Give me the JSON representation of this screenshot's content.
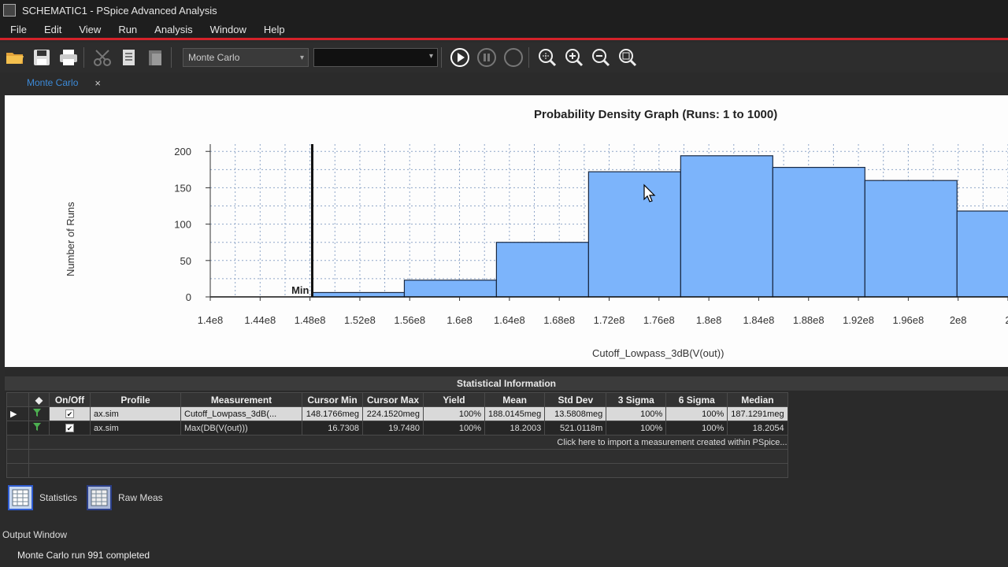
{
  "window": {
    "title": "SCHEMATIC1 - PSpice Advanced Analysis"
  },
  "menu": [
    "File",
    "Edit",
    "View",
    "Run",
    "Analysis",
    "Window",
    "Help"
  ],
  "toolbar": {
    "profile_value": "Monte Carlo",
    "icons": [
      "open-folder-icon",
      "save-icon",
      "print-icon",
      "cut-icon",
      "copy-icon",
      "paste-icon",
      "run-icon",
      "pause-icon",
      "stop-icon",
      "zoom-fit-icon",
      "zoom-in-icon",
      "zoom-out-icon",
      "zoom-area-icon"
    ]
  },
  "tab": {
    "label": "Monte Carlo",
    "close": "×"
  },
  "graph": {
    "title": "Probability Density Graph (Runs: 1 to 1000)",
    "ylabel": "Number of Runs",
    "xlabel": "Cutoff_Lowpass_3dB(V(out))",
    "min_marker": "Min"
  },
  "chart_data": {
    "type": "bar",
    "title": "Probability Density Graph (Runs: 1 to 1000)",
    "xlabel": "Cutoff_Lowpass_3dB(V(out))",
    "ylabel": "Number of Runs",
    "x_ticks": [
      "1.4e8",
      "1.44e8",
      "1.48e8",
      "1.52e8",
      "1.56e8",
      "1.6e8",
      "1.64e8",
      "1.68e8",
      "1.72e8",
      "1.76e8",
      "1.8e8",
      "1.84e8",
      "1.88e8",
      "1.92e8",
      "1.96e8",
      "2e8",
      "2"
    ],
    "y_ticks": [
      0,
      50,
      100,
      150,
      200
    ],
    "xlim": [
      140000000.0,
      204000000.0
    ],
    "ylim": [
      0,
      210
    ],
    "bins": [
      {
        "start": 148180000.0,
        "end": 155570000.0,
        "count": 6
      },
      {
        "start": 155570000.0,
        "end": 162960000.0,
        "count": 23
      },
      {
        "start": 162960000.0,
        "end": 170350000.0,
        "count": 75
      },
      {
        "start": 170350000.0,
        "end": 177740000.0,
        "count": 172
      },
      {
        "start": 177740000.0,
        "end": 185130000.0,
        "count": 194
      },
      {
        "start": 185130000.0,
        "end": 192520000.0,
        "count": 178
      },
      {
        "start": 192520000.0,
        "end": 199910000.0,
        "count": 160
      },
      {
        "start": 199910000.0,
        "end": 207300000.0,
        "count": 118
      }
    ],
    "min_cursor": 148180000.0,
    "grid": true
  },
  "stats": {
    "header": "Statistical Information",
    "columns": [
      "◆",
      "On/Off",
      "Profile",
      "Measurement",
      "Cursor Min",
      "Cursor Max",
      "Yield",
      "Mean",
      "Std Dev",
      "3 Sigma",
      "6 Sigma",
      "Median"
    ],
    "rows": [
      {
        "profile": "ax.sim",
        "measurement": "Cutoff_Lowpass_3dB(...",
        "cursor_min": "148.1766meg",
        "cursor_max": "224.1520meg",
        "yield": "100%",
        "mean": "188.0145meg",
        "std_dev": "13.5808meg",
        "sigma3": "100%",
        "sigma6": "100%",
        "median": "187.1291meg"
      },
      {
        "profile": "ax.sim",
        "measurement": "Max(DB(V(out)))",
        "cursor_min": "16.7308",
        "cursor_max": "19.7480",
        "yield": "100%",
        "mean": "18.2003",
        "std_dev": "521.0118m",
        "sigma3": "100%",
        "sigma6": "100%",
        "median": "18.2054"
      }
    ],
    "import_hint": "Click here to import a measurement created within PSpice..."
  },
  "bottom_tabs": [
    "Statistics",
    "Raw Meas"
  ],
  "output": {
    "header": "Output Window",
    "line": "Monte Carlo run 991 completed"
  }
}
